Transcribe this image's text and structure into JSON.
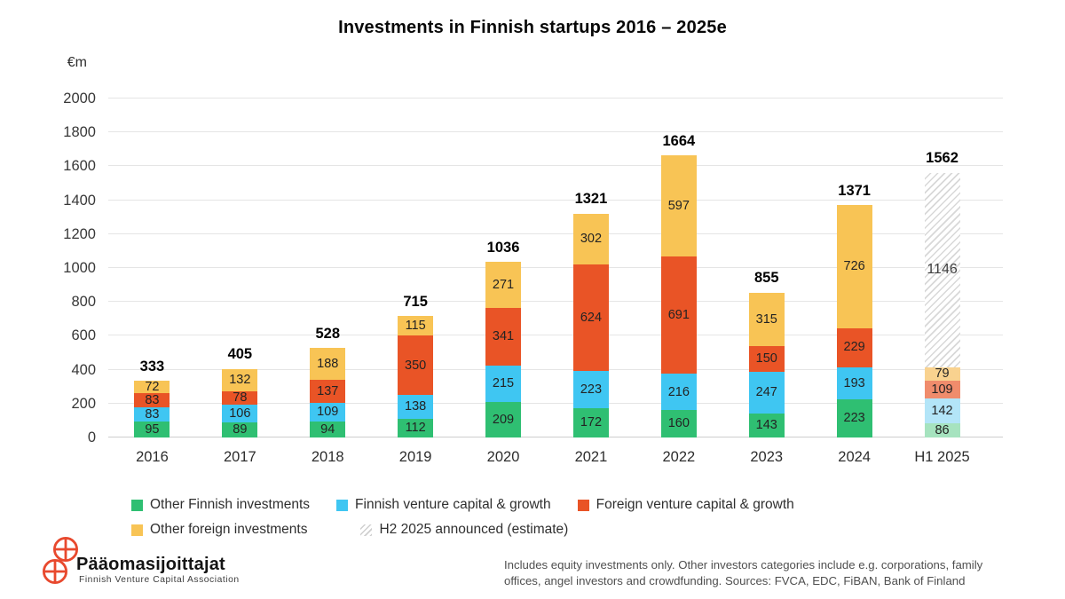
{
  "title": "Investments in Finnish startups 2016 – 2025e",
  "y_axis": {
    "unit_label": "€m",
    "ticks": [
      0,
      200,
      400,
      600,
      800,
      1000,
      1200,
      1400,
      1600,
      1800,
      2000
    ]
  },
  "chart_data": {
    "type": "bar",
    "stacked": true,
    "title": "Investments in Finnish startups 2016 – 2025e",
    "ylabel": "€m",
    "ylim": [
      0,
      2000
    ],
    "ytick_step": 200,
    "grid": "horizontal",
    "legend_position": "bottom",
    "categories": [
      "2016",
      "2017",
      "2018",
      "2019",
      "2020",
      "2021",
      "2022",
      "2023",
      "2024",
      "H1 2025"
    ],
    "series": [
      {
        "name": "Other Finnish investments",
        "color": "#2FBF72",
        "faded_color": "#A6E3BF",
        "values": [
          95,
          89,
          94,
          112,
          209,
          172,
          160,
          143,
          223,
          86
        ]
      },
      {
        "name": "Finnish venture capital & growth",
        "color": "#3FC6F2",
        "faded_color": "#B3E5F8",
        "values": [
          83,
          106,
          109,
          138,
          215,
          223,
          216,
          247,
          193,
          142
        ]
      },
      {
        "name": "Foreign venture capital & growth",
        "color": "#E95426",
        "faded_color": "#F08C6C",
        "values": [
          83,
          78,
          137,
          350,
          341,
          624,
          691,
          150,
          229,
          109
        ]
      },
      {
        "name": "Other foreign investments",
        "color": "#F8C455",
        "faded_color": "#F9D28F",
        "values": [
          72,
          132,
          188,
          115,
          271,
          302,
          597,
          315,
          726,
          79
        ]
      },
      {
        "name": "H2 2025 announced (estimate)",
        "pattern": "hatch",
        "values": [
          0,
          0,
          0,
          0,
          0,
          0,
          0,
          0,
          0,
          1146
        ]
      }
    ],
    "totals": [
      333,
      405,
      528,
      715,
      1036,
      1321,
      1664,
      855,
      1371,
      1562
    ]
  },
  "legend": {
    "rows": [
      [
        {
          "label": "Other Finnish investments",
          "color": "#2FBF72"
        },
        {
          "label": "Finnish venture capital & growth",
          "color": "#3FC6F2"
        },
        {
          "label": "Foreign venture capital & growth",
          "color": "#E95426"
        }
      ],
      [
        {
          "label": "Other foreign investments",
          "color": "#F8C455"
        },
        {
          "label": "H2 2025 announced (estimate)",
          "pattern": "hatch"
        }
      ]
    ]
  },
  "logo": {
    "name": "Pääomasijoittajat",
    "subtitle": "Finnish Venture Capital Association",
    "accent_color": "#E8492E"
  },
  "footnote": "Includes equity investments only. Other investors categories include e.g. corporations, family offices, angel investors and crowdfunding. Sources: FVCA, EDC, FiBAN, Bank of Finland"
}
